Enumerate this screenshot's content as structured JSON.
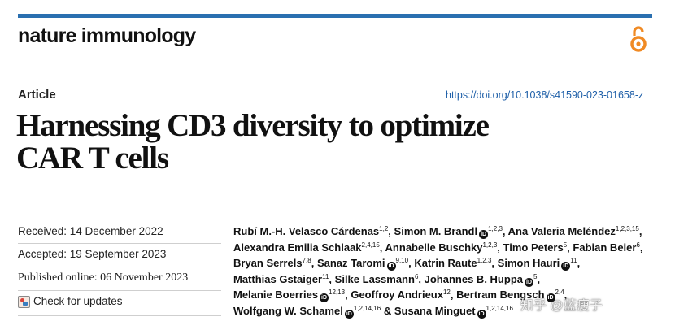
{
  "journal": {
    "name": "nature immunology"
  },
  "article": {
    "type": "Article",
    "doi": "https://doi.org/10.1038/s41590-023-01658-z",
    "title_lines": [
      "Harnessing CD3 diversity to optimize",
      "CAR T cells"
    ]
  },
  "dates": {
    "received": "Received: 14 December 2022",
    "accepted": "Accepted: 19 September 2023",
    "published": "Published online: 06 November 2023",
    "check_updates": "Check for updates"
  },
  "authors": [
    {
      "name": "Rubí M.-H. Velasco Cárdenas",
      "sup": "1,2",
      "orcid": false,
      "sep": ","
    },
    {
      "name": "Simon M. Brandl",
      "sup": "1,2,3",
      "orcid": true,
      "sep": ","
    },
    {
      "name": "Ana Valeria Meléndez",
      "sup": "1,2,3,15",
      "orcid": false,
      "sep": ","
    },
    {
      "name": "Alexandra Emilia Schlaak",
      "sup": "2,4,15",
      "orcid": false,
      "sep": ","
    },
    {
      "name": "Annabelle Buschky",
      "sup": "1,2,3",
      "orcid": false,
      "sep": ","
    },
    {
      "name": "Timo Peters",
      "sup": "5",
      "orcid": false,
      "sep": ","
    },
    {
      "name": "Fabian Beier",
      "sup": "6",
      "orcid": false,
      "sep": ","
    },
    {
      "name": "Bryan Serrels",
      "sup": "7,8",
      "orcid": false,
      "sep": ","
    },
    {
      "name": "Sanaz Taromi",
      "sup": "9,10",
      "orcid": true,
      "sep": ","
    },
    {
      "name": "Katrin Raute",
      "sup": "1,2,3",
      "orcid": false,
      "sep": ","
    },
    {
      "name": "Simon Hauri",
      "sup": "11",
      "orcid": true,
      "sep": ","
    },
    {
      "name": "Matthias Gstaiger",
      "sup": "11",
      "orcid": false,
      "sep": ","
    },
    {
      "name": "Silke Lassmann",
      "sup": "6",
      "orcid": false,
      "sep": ","
    },
    {
      "name": "Johannes B. Huppa",
      "sup": "5",
      "orcid": true,
      "sep": ","
    },
    {
      "name": "Melanie Boerries",
      "sup": "12,13",
      "orcid": true,
      "sep": ","
    },
    {
      "name": "Geoffroy Andrieux",
      "sup": "12",
      "orcid": false,
      "sep": ","
    },
    {
      "name": "Bertram Bengsch",
      "sup": "2,4",
      "orcid": true,
      "sep": ","
    },
    {
      "name": "Wolfgang W. Schamel",
      "sup": "1,2,14,16",
      "orcid": true,
      "sep": " &"
    },
    {
      "name": "Susana Minguet",
      "sup": "1,2,14,16",
      "orcid": true,
      "sep": ""
    }
  ],
  "watermark": "知乎 @蓝瘦子",
  "colors": {
    "accent_bar": "#2a6fb0",
    "link": "#1e5fa8",
    "open_access": "#f08a24"
  },
  "icons": {
    "open_access": "open-access-icon",
    "orcid": "orcid-icon",
    "check_updates": "check-updates-icon"
  }
}
